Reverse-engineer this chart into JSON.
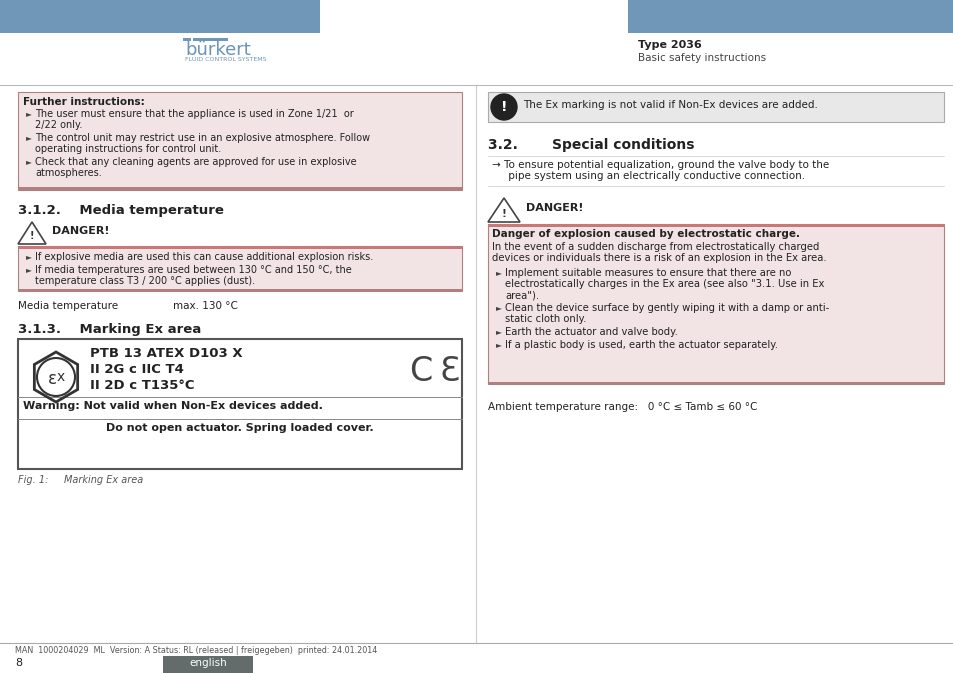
{
  "header_bar_color": "#7096b8",
  "title_right": "Type 2036",
  "subtitle_right": "Basic safety instructions",
  "further_box_bg": "#f2e4e4",
  "further_box_border": "#b08080",
  "further_title": "Further instructions:",
  "further_items": [
    "The user must ensure that the appliance is used in Zone 1/21  or\n2/22 only.",
    "The control unit may restrict use in an explosive atmosphere. Follow\noperating instructions for control unit.",
    "Check that any cleaning agents are approved for use in explosive\natmospheres."
  ],
  "section312_title": "3.1.2.    Media temperature",
  "danger_label": "DANGER!",
  "danger_bar_color": "#c87878",
  "danger_items_left": [
    "If explosive media are used this can cause additional explosion risks.",
    "If media temperatures are used between 130 °C and 150 °C, the\ntemperature class T3 / 200 °C applies (dust)."
  ],
  "danger_box_bg": "#f2e4e4",
  "danger_box_border": "#b08080",
  "media_temp_label": "Media temperature",
  "media_temp_value": "max. 130 °C",
  "section313_title": "3.1.3.    Marking Ex area",
  "ex_box_lines": [
    "PTB 13 ATEX D103 X",
    "II 2G c IIC T4",
    "II 2D c T135°C"
  ],
  "ex_warning1": "Warning: Not valid when Non-Ex devices added.",
  "ex_warning2": "Do not open actuator. Spring loaded cover.",
  "fig_caption": "Fig. 1:     Marking Ex area",
  "footer_text": "MAN  1000204029  ML  Version: A Status: RL (released | freigegeben)  printed: 24.01.2014",
  "footer_page": "8",
  "footer_lang": "english",
  "footer_lang_bg": "#636b6b",
  "right_warning_text": "The Ex marking is not valid if Non-Ex devices are added.",
  "right_warning_bg": "#e8e8e8",
  "right_warning_border": "#aaaaaa",
  "section32_title": "3.2.       Special conditions",
  "section32_text1": "→ To ensure potential equalization, ground the valve body to the",
  "section32_text2": "     pipe system using an electrically conductive connection.",
  "danger2_label": "DANGER!",
  "danger2_title": "Danger of explosion caused by electrostatic charge.",
  "danger2_body1": "In the event of a sudden discharge from electrostatically charged",
  "danger2_body2": "devices or individuals there is a risk of an explosion in the Ex area.",
  "danger2_items": [
    "Implement suitable measures to ensure that there are no\nelectrostatically charges in the Ex area (see also \"3.1. Use in Ex\narea\").",
    "Clean the device surface by gently wiping it with a damp or anti-\nstatic cloth only.",
    "Earth the actuator and valve body.",
    "If a plastic body is used, earth the actuator separately."
  ],
  "danger2_box_bg": "#f2e4e4",
  "danger2_box_border": "#b08080",
  "ambient_temp": "Ambient temperature range:   0 °C ≤ Tamb ≤ 60 °C"
}
